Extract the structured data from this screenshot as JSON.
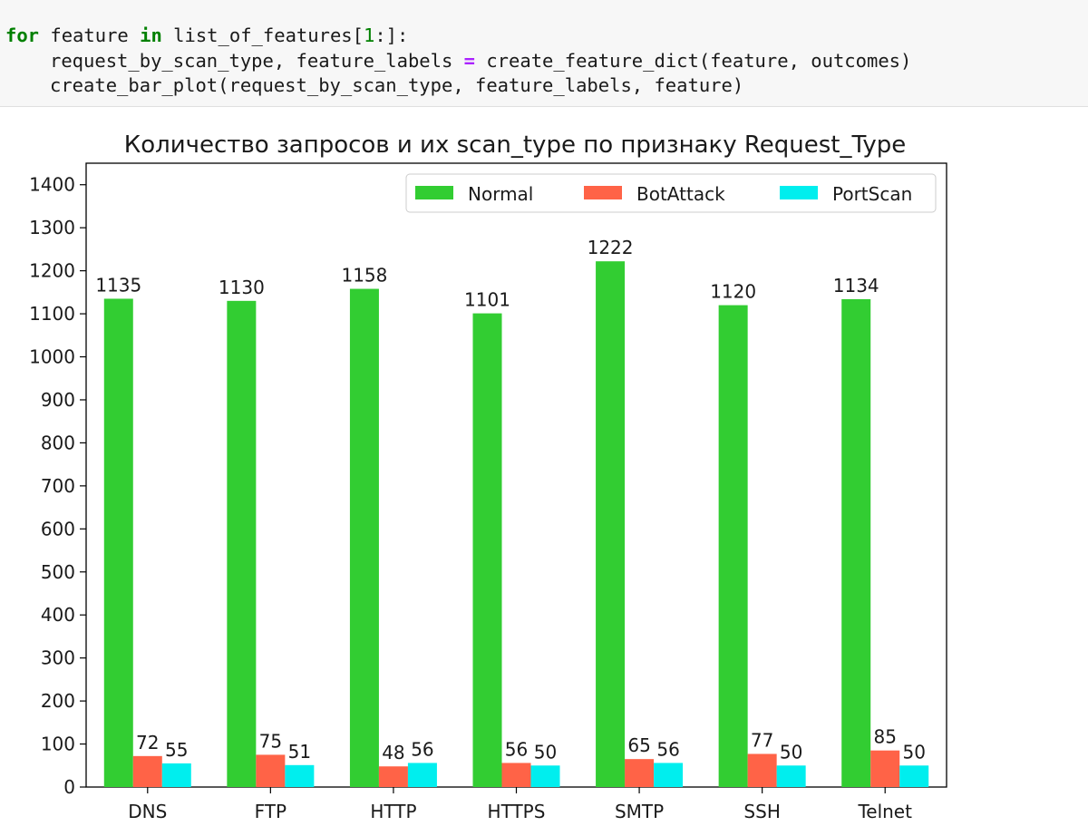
{
  "code": {
    "line1": {
      "kw_for": "for",
      "a": " feature ",
      "kw_in": "in",
      "b": " list_of_features[",
      "num": "1",
      "c": ":]:"
    },
    "line2": {
      "a": "request_by_scan_type, feature_labels ",
      "op": "=",
      "b": " create_feature_dict(feature, outcomes)"
    },
    "line3": {
      "a": "create_bar_plot(request_by_scan_type, feature_labels, feature)"
    }
  },
  "chart_data": {
    "type": "bar",
    "title": "Количество запросов и их scan_type по признаку Request_Type",
    "xlabel": "",
    "ylabel": "",
    "categories": [
      "DNS",
      "FTP",
      "HTTP",
      "HTTPS",
      "SMTP",
      "SSH",
      "Telnet"
    ],
    "series": [
      {
        "name": "Normal",
        "color": "#32cd32",
        "values": [
          1135,
          1130,
          1158,
          1101,
          1222,
          1120,
          1134
        ]
      },
      {
        "name": "BotAttack",
        "color": "#ff6347",
        "values": [
          72,
          75,
          48,
          56,
          65,
          77,
          85
        ]
      },
      {
        "name": "PortScan",
        "color": "#00eeee",
        "values": [
          55,
          51,
          56,
          50,
          56,
          50,
          50
        ]
      }
    ],
    "ylim": [
      0,
      1450
    ],
    "yticks": [
      0,
      100,
      200,
      300,
      400,
      500,
      600,
      700,
      800,
      900,
      1000,
      1100,
      1200,
      1300,
      1400
    ],
    "legend_position": "top-right",
    "grid": false
  }
}
